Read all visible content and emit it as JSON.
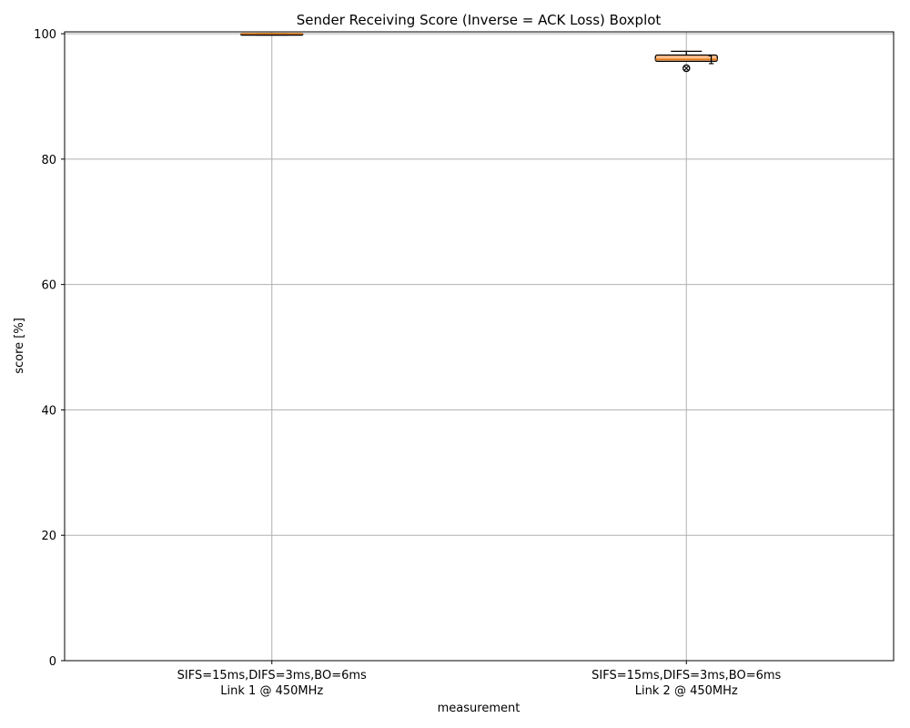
{
  "chart_data": {
    "type": "boxplot",
    "title": "Sender Receiving Score (Inverse = ACK Loss) Boxplot",
    "xlabel": "measurement",
    "ylabel": "score [%]",
    "ylim": [
      0,
      100.3
    ],
    "yticks": [
      0,
      20,
      40,
      60,
      80,
      100
    ],
    "grid": true,
    "categories": [
      [
        "SIFS=15ms,DIFS=3ms,BO=6ms",
        "Link 1 @ 450MHz"
      ],
      [
        "SIFS=15ms,DIFS=3ms,BO=6ms",
        "Link 2 @ 450MHz"
      ]
    ],
    "boxes": [
      {
        "whisker_low": 99.8,
        "q1": 99.8,
        "median": 100.0,
        "q3": 100.0,
        "whisker_high": 100.0,
        "outliers": [],
        "annotations": []
      },
      {
        "whisker_low": 95.6,
        "q1": 95.6,
        "median": 95.9,
        "q3": 96.6,
        "whisker_high": 97.2,
        "outliers": [
          94.5
        ],
        "annotations": [
          {
            "text": "1",
            "y": 95.2
          }
        ]
      }
    ],
    "colors": {
      "box_fill": "#fdbf8c",
      "median": "#e07b1a",
      "grid": "#b0b0b0",
      "axis": "#000000"
    }
  }
}
